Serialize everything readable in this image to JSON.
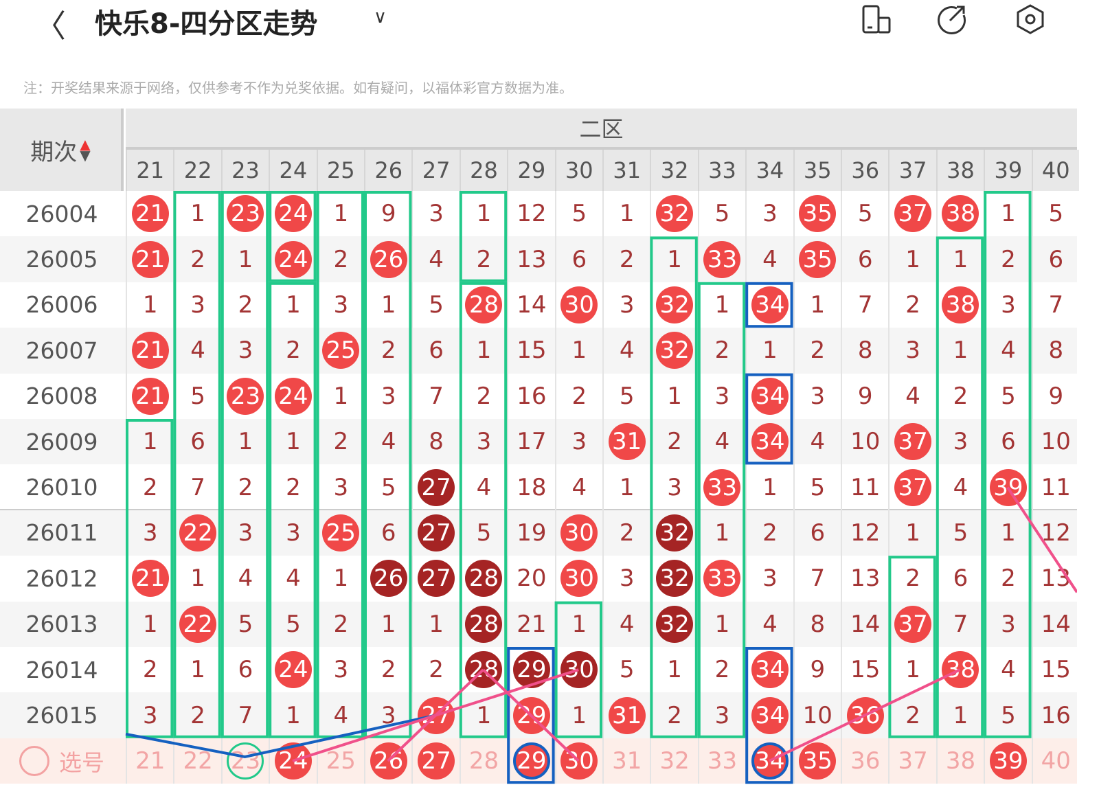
{
  "header": {
    "title": "快乐8-四分区走势",
    "back_icon": "chevron-left-icon",
    "icons": [
      "phone-layout-icon",
      "share-icon",
      "settings-icon"
    ]
  },
  "note": "注：开奖结果来源于网络，仅供参考不作为兑奖依据。如有疑问，以福体彩官方数据为准。",
  "table": {
    "period_header": "期次",
    "zone_label": "二区",
    "columns": [
      "21",
      "22",
      "23",
      "24",
      "25",
      "26",
      "27",
      "28",
      "29",
      "30",
      "31",
      "32",
      "33",
      "34",
      "35",
      "36",
      "37",
      "38",
      "39",
      "40"
    ],
    "colors": {
      "hit": "#f04848",
      "repeat_hit": "#a52424",
      "miss_box": "#22c98a",
      "blue_box": "#1560c0",
      "line": "#f0508a"
    },
    "rows": [
      {
        "period": "26004",
        "cells": [
          "21r",
          "1",
          "23r",
          "24r",
          "1",
          "9",
          "3",
          "1",
          "12",
          "5",
          "1",
          "32r",
          "5",
          "3",
          "35r",
          "5",
          "37r",
          "38r",
          "1",
          "5"
        ]
      },
      {
        "period": "26005",
        "cells": [
          "21r",
          "2",
          "1",
          "24r",
          "2",
          "26r",
          "4",
          "2",
          "13",
          "6",
          "2",
          "1",
          "33r",
          "4",
          "35r",
          "6",
          "1",
          "1",
          "2",
          "6"
        ]
      },
      {
        "period": "26006",
        "cells": [
          "1",
          "3",
          "2",
          "1",
          "3",
          "1",
          "5",
          "28r",
          "14",
          "30r",
          "3",
          "32r",
          "1",
          "34r",
          "1",
          "7",
          "2",
          "38r",
          "3",
          "7"
        ]
      },
      {
        "period": "26007",
        "cells": [
          "21r",
          "4",
          "3",
          "2",
          "25r",
          "2",
          "6",
          "1",
          "15",
          "1",
          "4",
          "32r",
          "2",
          "1",
          "2",
          "8",
          "3",
          "1",
          "4",
          "8"
        ]
      },
      {
        "period": "26008",
        "cells": [
          "21r",
          "5",
          "23r",
          "24r",
          "1",
          "3",
          "7",
          "2",
          "16",
          "2",
          "5",
          "1",
          "3",
          "34r",
          "3",
          "9",
          "4",
          "2",
          "5",
          "9"
        ]
      },
      {
        "period": "26009",
        "cells": [
          "1",
          "6",
          "1",
          "1",
          "2",
          "4",
          "8",
          "3",
          "17",
          "3",
          "31r",
          "2",
          "4",
          "34r",
          "4",
          "10",
          "37r",
          "3",
          "6",
          "10"
        ]
      },
      {
        "period": "26010",
        "cells": [
          "2",
          "7",
          "2",
          "2",
          "3",
          "5",
          "27d",
          "4",
          "18",
          "4",
          "1",
          "3",
          "33r",
          "1",
          "5",
          "11",
          "37r",
          "4",
          "39r",
          "11"
        ]
      },
      {
        "period": "26011",
        "cells": [
          "3",
          "22r",
          "3",
          "3",
          "25r",
          "6",
          "27d",
          "5",
          "19",
          "30r",
          "2",
          "32d",
          "1",
          "2",
          "6",
          "12",
          "1",
          "5",
          "1",
          "12"
        ]
      },
      {
        "period": "26012",
        "cells": [
          "21r",
          "1",
          "4",
          "4",
          "1",
          "26d",
          "27d",
          "28d",
          "20",
          "30r",
          "3",
          "32d",
          "33r",
          "3",
          "7",
          "13",
          "2",
          "6",
          "2",
          "13"
        ]
      },
      {
        "period": "26013",
        "cells": [
          "1",
          "22r",
          "5",
          "5",
          "2",
          "1",
          "1",
          "28d",
          "21",
          "1",
          "4",
          "32d",
          "1",
          "4",
          "8",
          "14",
          "37r",
          "7",
          "3",
          "14"
        ]
      },
      {
        "period": "26014",
        "cells": [
          "2",
          "1",
          "6",
          "24r",
          "3",
          "2",
          "2",
          "28d",
          "29d",
          "30d",
          "5",
          "1",
          "2",
          "34r",
          "9",
          "15",
          "1",
          "38r",
          "4",
          "15"
        ]
      },
      {
        "period": "26015",
        "cells": [
          "3",
          "2",
          "7",
          "1",
          "4",
          "3",
          "27r",
          "1",
          "29r",
          "1",
          "31r",
          "2",
          "3",
          "34r",
          "10",
          "36r",
          "2",
          "1",
          "5",
          "16"
        ]
      }
    ],
    "select_row": {
      "label": "选号",
      "cells": [
        "21",
        "22",
        "23g",
        "24r",
        "25",
        "26r",
        "27r",
        "28",
        "29rb",
        "30r",
        "31",
        "32",
        "33",
        "34rb",
        "35r",
        "36",
        "37",
        "38",
        "39r",
        "40"
      ]
    }
  }
}
